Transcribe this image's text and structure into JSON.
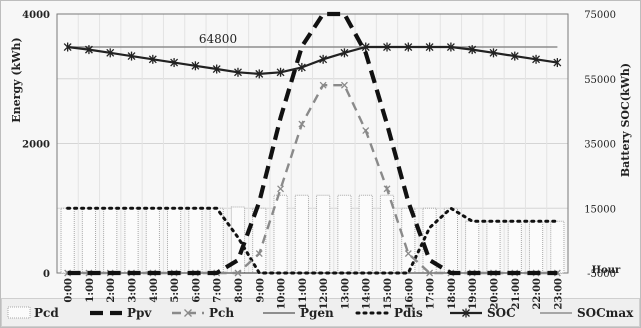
{
  "chart_data": {
    "type": "bar",
    "title": "",
    "xlabel": "Hour",
    "ylabel_left": "Energy (kWh)",
    "ylabel_right": "Battery SOC(kWh)",
    "ylim_left": [
      0,
      4000
    ],
    "ylim_right": [
      -5000,
      75000
    ],
    "yticks_left": [
      "0",
      "2000",
      "4000"
    ],
    "yticks_right": [
      "-5000",
      "15000",
      "35000",
      "55000",
      "75000"
    ],
    "categories": [
      "0:00",
      "1:00",
      "2:00",
      "3:00",
      "4:00",
      "5:00",
      "6:00",
      "7:00",
      "8:00",
      "9:00",
      "10:00",
      "11:00",
      "12:00",
      "13:00",
      "14:00",
      "15:00",
      "16:00",
      "17:00",
      "18:00",
      "19:00",
      "20:00",
      "21:00",
      "22:00",
      "23:00"
    ],
    "annotation": "64800",
    "grid": true,
    "legend_position": "bottom",
    "series": [
      {
        "name": "Pcd",
        "axis": "left",
        "kind": "bar",
        "values": [
          1000,
          1000,
          1000,
          1000,
          1000,
          1000,
          1000,
          1000,
          1020,
          1000,
          1200,
          1200,
          1200,
          1200,
          1200,
          1200,
          1000,
          1000,
          1000,
          800,
          800,
          800,
          800,
          800
        ]
      },
      {
        "name": "Ppv",
        "axis": "left",
        "kind": "line",
        "values": [
          0,
          0,
          0,
          0,
          0,
          0,
          0,
          0,
          200,
          1100,
          2400,
          3500,
          4000,
          4000,
          3400,
          2300,
          1100,
          200,
          0,
          0,
          0,
          0,
          0,
          0
        ]
      },
      {
        "name": "Pch",
        "axis": "left",
        "kind": "line",
        "values": [
          0,
          0,
          0,
          0,
          0,
          0,
          0,
          0,
          0,
          300,
          1300,
          2300,
          2900,
          2900,
          2200,
          1300,
          300,
          0,
          0,
          0,
          0,
          0,
          0,
          0
        ]
      },
      {
        "name": "Pgen",
        "axis": "left",
        "kind": "line",
        "values": [
          0,
          0,
          0,
          0,
          0,
          0,
          0,
          0,
          0,
          0,
          0,
          0,
          0,
          0,
          0,
          0,
          0,
          0,
          0,
          0,
          0,
          0,
          0,
          0
        ]
      },
      {
        "name": "Pdis",
        "axis": "left",
        "kind": "line",
        "values": [
          1000,
          1000,
          1000,
          1000,
          1000,
          1000,
          1000,
          1000,
          550,
          0,
          0,
          0,
          0,
          0,
          0,
          0,
          0,
          700,
          1000,
          800,
          800,
          800,
          800,
          800
        ]
      },
      {
        "name": "SOC",
        "axis": "right",
        "kind": "line",
        "values": [
          64800,
          64000,
          63000,
          62000,
          61000,
          60000,
          59000,
          58000,
          57000,
          56500,
          57000,
          58500,
          61000,
          63000,
          64800,
          64800,
          64800,
          64800,
          64800,
          64000,
          63000,
          62000,
          61000,
          60000
        ]
      },
      {
        "name": "SOCmax",
        "axis": "right",
        "kind": "line",
        "values": [
          64800,
          64800,
          64800,
          64800,
          64800,
          64800,
          64800,
          64800,
          64800,
          64800,
          64800,
          64800,
          64800,
          64800,
          64800,
          64800,
          64800,
          64800,
          64800,
          64800,
          64800,
          64800,
          64800,
          64800
        ]
      }
    ]
  }
}
